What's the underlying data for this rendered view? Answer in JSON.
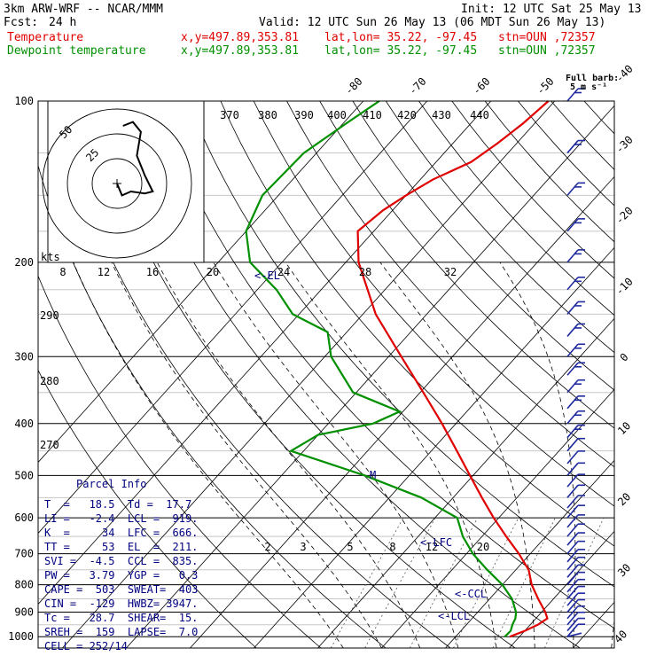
{
  "header": {
    "model": "3km ARW-WRF -- NCAR/MMM",
    "init": "Init: 12 UTC Sat 25 May 13",
    "fcst_label": "Fcst:",
    "fcst_value": "24 h",
    "valid": "Valid: 12 UTC Sun 26 May 13 (06 MDT Sun 26 May 13)",
    "temp_label": "Temperature",
    "dew_label": "Dewpoint temperature",
    "point_xy": "x,y=497.89,353.81",
    "point_latlon": "lat,lon= 35.22, -97.45",
    "point_stn": "stn=OUN ,72357"
  },
  "barb_legend": {
    "title": "Full barb:",
    "value": "5 m s⁻¹"
  },
  "parcel": {
    "title": "Parcel Info",
    "rows": [
      "T  =   18.5  Td =  17.7",
      "LI =   -2.4  LCL =  919.",
      "K  =     34  LFC =  666.",
      "TT =     53  EL  =  211.",
      "SVI =  -4.5  CCL =  835.",
      "PW =   3.79  YGP =   0.3",
      "CAPE =  503  SWEAT=  403",
      "CIN =  -129  HWBZ= 3947.",
      "Tc =   28.7  SHEAR=  15.",
      "SREH =  159  LAPSE=  7.0",
      "CELL = 252/14"
    ]
  },
  "hodograph": {
    "unit": "kts",
    "ring_labels": [
      "25",
      "50"
    ]
  },
  "chart_data": {
    "type": "line",
    "p_ticks": [
      100,
      200,
      300,
      400,
      500,
      600,
      700,
      800,
      900,
      1000
    ],
    "isotherm_labels": [
      "-80",
      "-70",
      "-60",
      "-50",
      "-40",
      "-30",
      "-20",
      "-10",
      "0",
      "10",
      "20",
      "30",
      "40"
    ],
    "isotherm_values": [
      -80,
      -70,
      -60,
      -50,
      -40,
      -30,
      -20,
      -10,
      0,
      10,
      20,
      30,
      40
    ],
    "theta_labels": [
      "370",
      "380",
      "390",
      "400",
      "410",
      "420",
      "430",
      "440"
    ],
    "mixing_top_labels": [
      "8",
      "12",
      "16",
      "20",
      "24",
      "28",
      "32"
    ],
    "mixing_bottom_labels": [
      "2",
      "3",
      "5",
      "8",
      "12",
      "20"
    ],
    "dry_adiabat_labels": [
      "290",
      "280",
      "270"
    ],
    "level_markers": [
      "<-EL",
      "<-LFC",
      "<-CCL",
      "<-LCL",
      "M"
    ],
    "series": [
      {
        "name": "Temperature",
        "color": "#e00000",
        "points": [
          [
            1000,
            18.5
          ],
          [
            975,
            20.0
          ],
          [
            950,
            21.2
          ],
          [
            925,
            21.8
          ],
          [
            900,
            20.6
          ],
          [
            850,
            17.6
          ],
          [
            800,
            14.6
          ],
          [
            750,
            12.0
          ],
          [
            700,
            8.2
          ],
          [
            650,
            3.8
          ],
          [
            600,
            -0.8
          ],
          [
            550,
            -5.5
          ],
          [
            500,
            -10.5
          ],
          [
            450,
            -16.0
          ],
          [
            400,
            -22.2
          ],
          [
            350,
            -29.5
          ],
          [
            300,
            -38.0
          ],
          [
            250,
            -48.0
          ],
          [
            200,
            -58.0
          ],
          [
            175,
            -62.5
          ],
          [
            160,
            -61.5
          ],
          [
            150,
            -60.0
          ],
          [
            140,
            -58.0
          ],
          [
            130,
            -54.5
          ],
          [
            120,
            -53.0
          ],
          [
            110,
            -51.8
          ],
          [
            100,
            -51.0
          ]
        ]
      },
      {
        "name": "Dewpoint temperature",
        "color": "#009000",
        "points": [
          [
            1000,
            17.7
          ],
          [
            975,
            17.8
          ],
          [
            950,
            17.2
          ],
          [
            925,
            16.8
          ],
          [
            900,
            16.0
          ],
          [
            850,
            13.5
          ],
          [
            800,
            10.0
          ],
          [
            750,
            5.5
          ],
          [
            700,
            1.0
          ],
          [
            650,
            -3.0
          ],
          [
            600,
            -6.5
          ],
          [
            550,
            -15.0
          ],
          [
            500,
            -27.0
          ],
          [
            450,
            -42.0
          ],
          [
            420,
            -40.0
          ],
          [
            400,
            -33.0
          ],
          [
            380,
            -30.5
          ],
          [
            350,
            -40.5
          ],
          [
            300,
            -49.0
          ],
          [
            270,
            -53.0
          ],
          [
            250,
            -61.0
          ],
          [
            225,
            -67.0
          ],
          [
            200,
            -75.0
          ],
          [
            175,
            -80.0
          ],
          [
            150,
            -82.5
          ],
          [
            125,
            -82.0
          ],
          [
            110,
            -79.5
          ],
          [
            100,
            -77.5
          ]
        ]
      }
    ],
    "hodograph_points": [
      [
        0,
        0
      ],
      [
        5,
        -12
      ],
      [
        14,
        -8
      ],
      [
        28,
        -10
      ],
      [
        36,
        -8
      ],
      [
        28,
        8
      ],
      [
        20,
        28
      ],
      [
        24,
        52
      ],
      [
        16,
        62
      ],
      [
        6,
        58
      ]
    ],
    "wind_barbs_unit": "m s⁻¹"
  }
}
